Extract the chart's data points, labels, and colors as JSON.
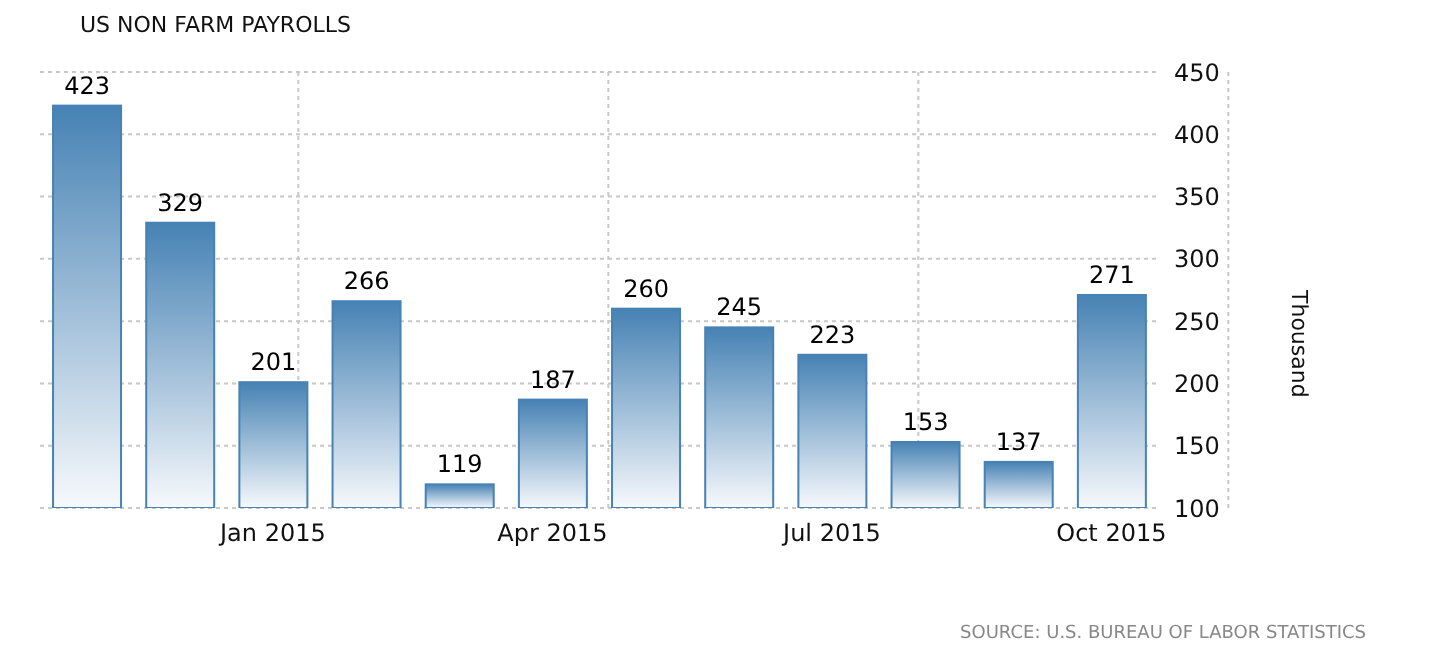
{
  "chart_data": {
    "type": "bar",
    "title": "US NON FARM PAYROLLS",
    "ylabel": "Thousand",
    "categories": [
      null,
      null,
      "Jan 2015",
      null,
      null,
      "Apr 2015",
      null,
      null,
      "Jul 2015",
      null,
      null,
      "Oct 2015"
    ],
    "values": [
      423,
      329,
      201,
      266,
      119,
      187,
      260,
      245,
      223,
      153,
      137,
      271
    ],
    "color": "#4682b4",
    "ylim": [
      100,
      450
    ],
    "yticks": [
      100,
      150,
      200,
      250,
      300,
      350,
      400,
      450
    ],
    "grid": true,
    "data_labels": true,
    "legend": false,
    "annotations": [
      "SOURCE: U.S. BUREAU OF LABOR STATISTICS"
    ]
  }
}
